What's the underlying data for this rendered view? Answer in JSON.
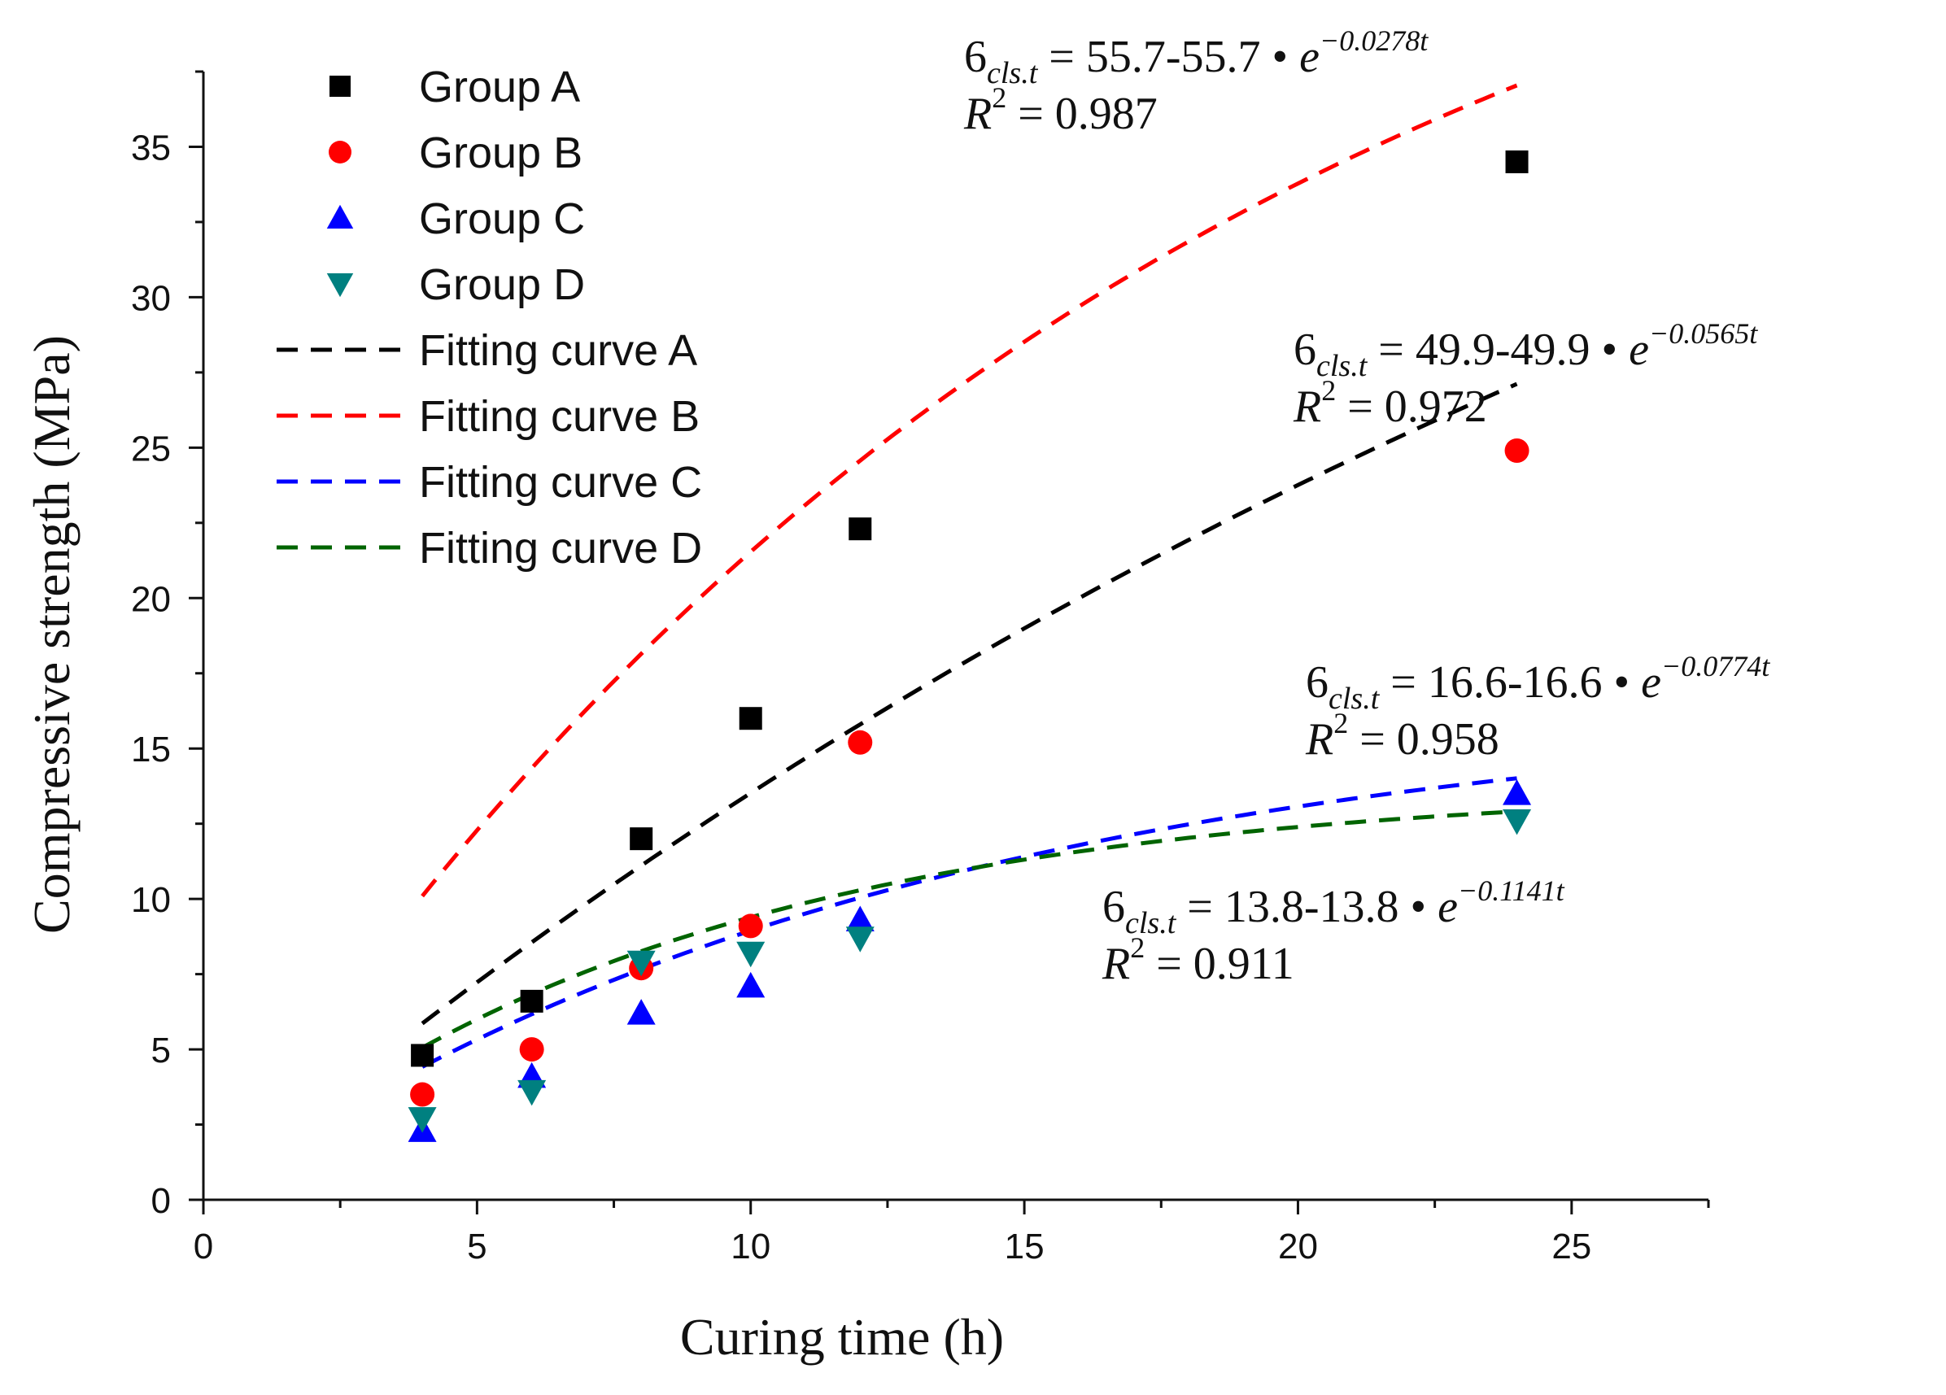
{
  "chart_data": {
    "type": "scatter",
    "title": "",
    "xlabel": "Curing time (h)",
    "ylabel": "Compressive strength (MPa)",
    "xlim": [
      0,
      27.5
    ],
    "ylim": [
      0,
      37.5
    ],
    "xticks": [
      0,
      5,
      10,
      15,
      20,
      25
    ],
    "yticks": [
      0,
      5,
      10,
      15,
      20,
      25,
      30,
      35
    ],
    "x": [
      4,
      6,
      8,
      10,
      12,
      24
    ],
    "series": [
      {
        "key": "A",
        "name": "Group A",
        "marker": "square",
        "color": "#000000",
        "values": [
          4.8,
          6.6,
          12.0,
          16.0,
          22.3,
          34.5
        ]
      },
      {
        "key": "B",
        "name": "Group B",
        "marker": "circle",
        "color": "#ff0000",
        "values": [
          3.5,
          5.0,
          7.7,
          9.1,
          15.2,
          24.9
        ]
      },
      {
        "key": "C",
        "name": "Group C",
        "marker": "triangle-up",
        "color": "#0000ff",
        "values": [
          2.3,
          4.1,
          6.2,
          7.1,
          9.3,
          13.5
        ]
      },
      {
        "key": "D",
        "name": "Group D",
        "marker": "triangle-down",
        "color": "#008080",
        "values": [
          2.7,
          3.6,
          7.9,
          8.2,
          8.7,
          12.6
        ]
      }
    ],
    "fits": [
      {
        "key": "A",
        "name": "Fitting curve A",
        "color": "#000000",
        "a": 55.7,
        "k": 0.0278,
        "t_range": [
          4,
          24
        ]
      },
      {
        "key": "B",
        "name": "Fitting curve B",
        "color": "#ff0000",
        "a": 49.9,
        "k": 0.0565,
        "t_range": [
          4,
          24
        ]
      },
      {
        "key": "C",
        "name": "Fitting curve C",
        "color": "#0000ff",
        "a": 16.6,
        "k": 0.0774,
        "t_range": [
          4,
          24
        ]
      },
      {
        "key": "D",
        "name": "Fitting curve D",
        "color": "#006400",
        "a": 13.8,
        "k": 0.1141,
        "t_range": [
          4,
          24
        ]
      }
    ],
    "annotations": [
      {
        "key": "A",
        "sigma": "6",
        "sub": "cls.t",
        "eq_mid": " = 55.7-55.7 • ",
        "base": "e",
        "exp": "−0.0278t",
        "r2_label": "R",
        "r2_sup": "2",
        "r2_val": " = 0.987"
      },
      {
        "key": "B",
        "sigma": "6",
        "sub": "cls.t",
        "eq_mid": " = 49.9-49.9 • ",
        "base": "e",
        "exp": "−0.0565t",
        "r2_label": "R",
        "r2_sup": "2",
        "r2_val": " = 0.972"
      },
      {
        "key": "C",
        "sigma": "6",
        "sub": "cls.t",
        "eq_mid": " = 16.6-16.6 • ",
        "base": "e",
        "exp": "−0.0774t",
        "r2_label": "R",
        "r2_sup": "2",
        "r2_val": " = 0.958"
      },
      {
        "key": "D",
        "sigma": "6",
        "sub": "cls.t",
        "eq_mid": " = 13.8-13.8 • ",
        "base": "e",
        "exp": "−0.1141t",
        "r2_label": "R",
        "r2_sup": "2",
        "r2_val": " = 0.911"
      }
    ],
    "legend": "top-left",
    "grid": false
  }
}
